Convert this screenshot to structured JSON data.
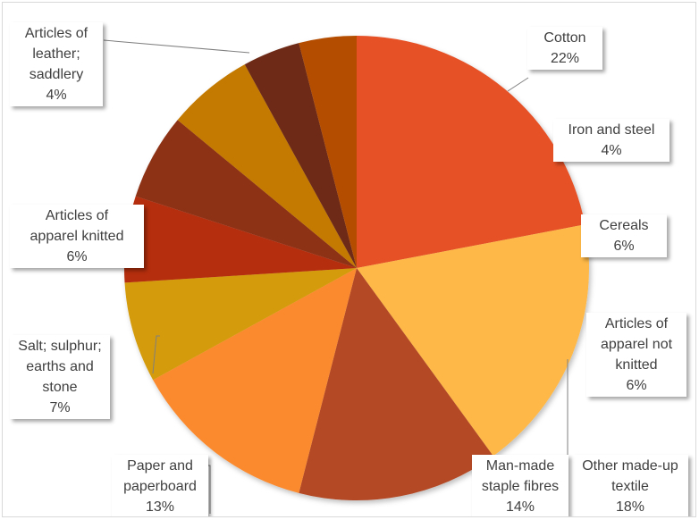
{
  "chart_data": {
    "type": "pie",
    "title": "",
    "slices": [
      {
        "name": "Cotton",
        "label_name": "Cotton",
        "percent_label": "22%",
        "value": 22,
        "color": "#E65128"
      },
      {
        "name": "Other made-up textile",
        "label_name": "Other made-up\ntextile",
        "percent_label": "18%",
        "value": 18,
        "color": "#FDB847"
      },
      {
        "name": "Man-made staple fibres",
        "label_name": "Man-made\nstaple fibres",
        "percent_label": "14%",
        "value": 14,
        "color": "#B44A25"
      },
      {
        "name": "Paper and paperboard",
        "label_name": "Paper and\npaperboard",
        "percent_label": "13%",
        "value": 13,
        "color": "#FB8A2E"
      },
      {
        "name": "Salt; sulphur; earths and stone",
        "label_name": "Salt; sulphur;\nearths and\nstone",
        "percent_label": "7%",
        "value": 7,
        "color": "#D49B07"
      },
      {
        "name": "Articles of apparel knitted",
        "label_name": "Articles of\napparel  knitted",
        "percent_label": "6%",
        "value": 6,
        "color": "#B52D0A"
      },
      {
        "name": "Articles of apparel not knitted",
        "label_name": "Articles of\napparel  not\nknitted",
        "percent_label": "6%",
        "value": 6,
        "color": "#8E3014"
      },
      {
        "name": "Cereals",
        "label_name": "Cereals",
        "percent_label": "6%",
        "value": 6,
        "color": "#C47A03"
      },
      {
        "name": "Articles of leather; saddlery",
        "label_name": "Articles of\nleather;\nsaddlery",
        "percent_label": "4%",
        "value": 4,
        "color": "#6E2A16"
      },
      {
        "name": "Iron and steel",
        "label_name": "Iron and steel",
        "percent_label": "4%",
        "value": 4,
        "color": "#B54E05"
      }
    ]
  }
}
